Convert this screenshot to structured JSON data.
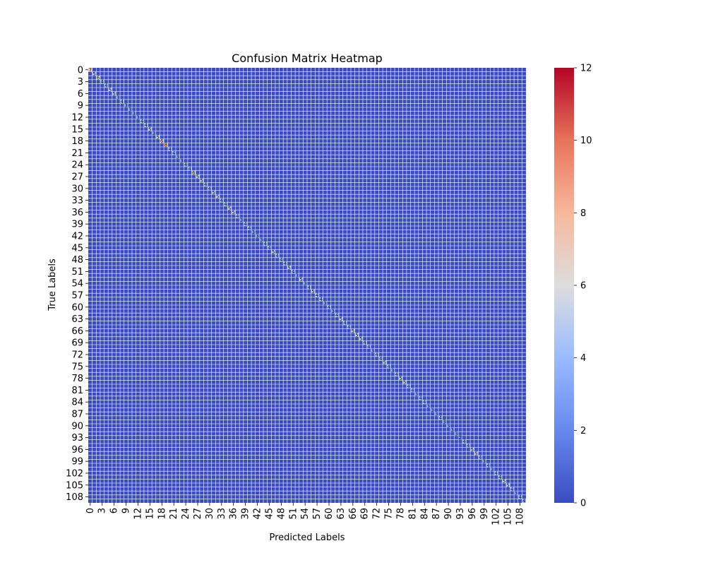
{
  "chart_data": {
    "type": "heatmap",
    "title": "Confusion Matrix Heatmap",
    "xlabel": "Predicted Labels",
    "ylabel": "True Labels",
    "n_classes": 110,
    "tick_step": 3,
    "diagonal_values": [
      7,
      5,
      6,
      4,
      4,
      5,
      5,
      3,
      4,
      3,
      3,
      3,
      3,
      4,
      4,
      5,
      3,
      5,
      6,
      8,
      4,
      4,
      3,
      3,
      4,
      4,
      6,
      5,
      5,
      4,
      4,
      5,
      5,
      4,
      4,
      5,
      5,
      4,
      3,
      4,
      4,
      3,
      3,
      3,
      4,
      4,
      5,
      4,
      4,
      4,
      5,
      4,
      3,
      5,
      3,
      4,
      5,
      4,
      4,
      3,
      4,
      3,
      4,
      5,
      4,
      4,
      5,
      5,
      5,
      4,
      4,
      3,
      4,
      4,
      5,
      4,
      3,
      4,
      5,
      5,
      4,
      4,
      3,
      4,
      4,
      3,
      3,
      3,
      4,
      3,
      3,
      3,
      3,
      2,
      4,
      4,
      5,
      5,
      4,
      3,
      4,
      3,
      4,
      4,
      5,
      5,
      4,
      3,
      4,
      4
    ],
    "off_diagonal_value": 0,
    "color_scale": {
      "name": "coolwarm",
      "min": 0,
      "max": 12,
      "ticks": [
        0,
        2,
        4,
        6,
        8,
        10,
        12
      ],
      "low_color": "#3b4cc0",
      "mid_color": "#dddddd",
      "high_color": "#b40426"
    },
    "grid_line_color": "#ffffff",
    "annotations": "cell values printed in every cell"
  }
}
